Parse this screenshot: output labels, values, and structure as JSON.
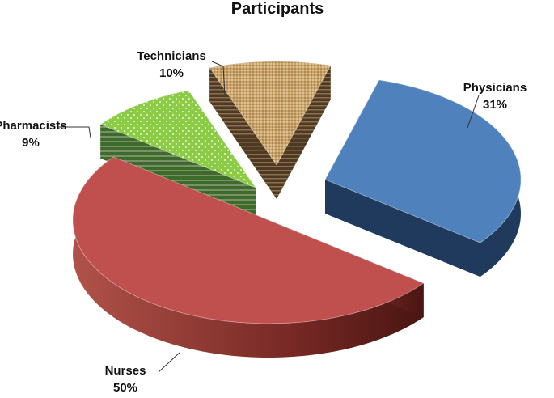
{
  "chart_data": {
    "type": "pie",
    "style": "3d-exploded",
    "title": "Participants",
    "slices": [
      {
        "name": "Physicians",
        "value": 31,
        "label": "31%",
        "color": "#4f81bd"
      },
      {
        "name": "Nurses",
        "value": 50,
        "label": "50%",
        "color": "#c0504d"
      },
      {
        "name": "Pharmacists",
        "value": 9,
        "label": "9%",
        "color": "#8ccb45"
      },
      {
        "name": "Technicians",
        "value": 10,
        "label": "10%",
        "color": "#c9a46c"
      }
    ],
    "legend": "none",
    "data_labels": "outside-with-leader-lines"
  }
}
